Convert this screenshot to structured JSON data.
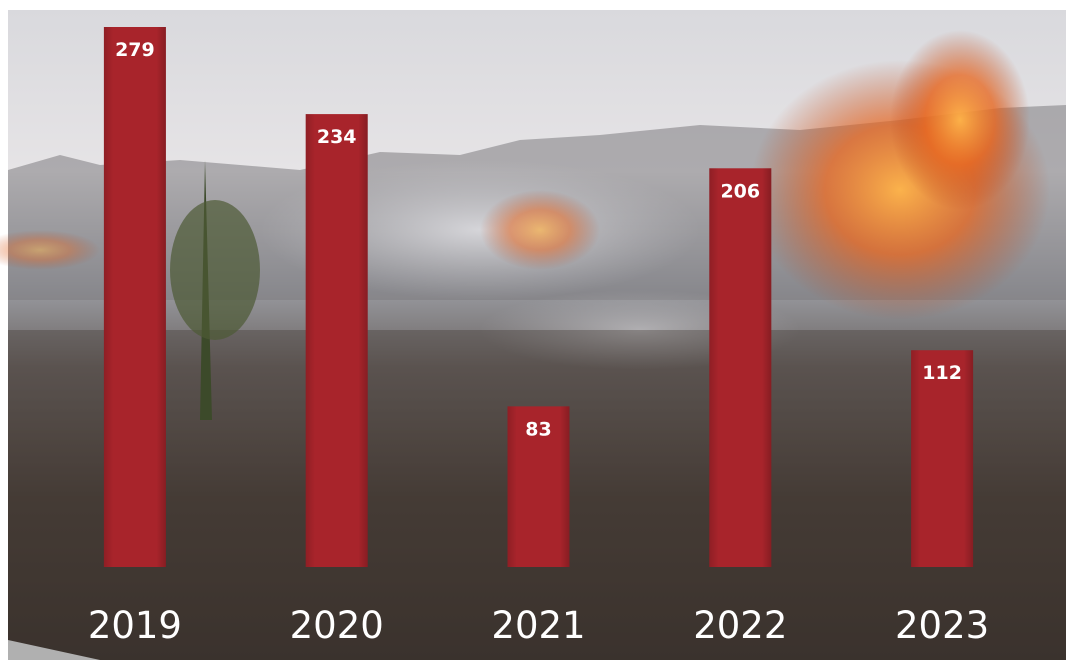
{
  "chart_data": {
    "type": "bar",
    "categories": [
      "2019",
      "2020",
      "2021",
      "2022",
      "2023"
    ],
    "values": [
      279,
      234,
      83,
      206,
      112
    ],
    "color": "#a8242b"
  }
}
